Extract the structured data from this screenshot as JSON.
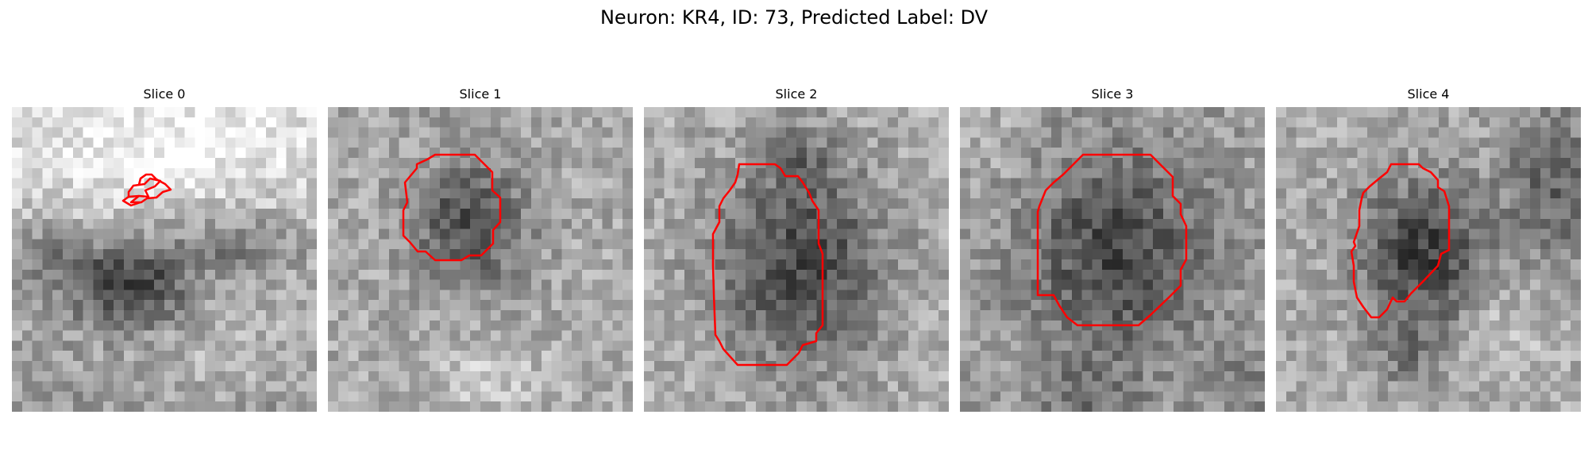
{
  "figure": {
    "title": "Neuron: KR4, ID: 73, Predicted Label: DV"
  },
  "slices": [
    {
      "label": "Slice 0"
    },
    {
      "label": "Slice 1"
    },
    {
      "label": "Slice 2"
    },
    {
      "label": "Slice 3"
    },
    {
      "label": "Slice 4"
    }
  ],
  "colors": {
    "contour": "#ff0000",
    "colormap": "gray"
  }
}
